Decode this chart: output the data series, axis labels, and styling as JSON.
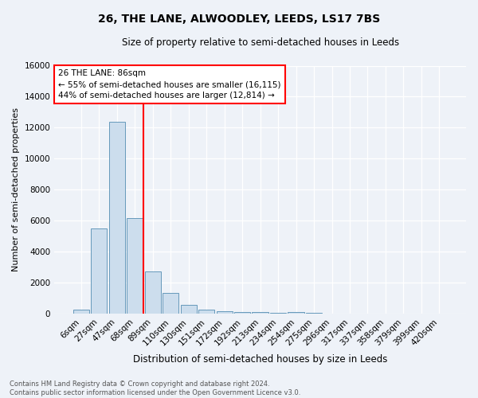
{
  "title": "26, THE LANE, ALWOODLEY, LEEDS, LS17 7BS",
  "subtitle": "Size of property relative to semi-detached houses in Leeds",
  "xlabel": "Distribution of semi-detached houses by size in Leeds",
  "ylabel": "Number of semi-detached properties",
  "bar_labels": [
    "6sqm",
    "27sqm",
    "47sqm",
    "68sqm",
    "89sqm",
    "110sqm",
    "130sqm",
    "151sqm",
    "172sqm",
    "192sqm",
    "213sqm",
    "234sqm",
    "254sqm",
    "275sqm",
    "296sqm",
    "317sqm",
    "337sqm",
    "358sqm",
    "379sqm",
    "399sqm",
    "420sqm"
  ],
  "bar_values": [
    300,
    5500,
    12400,
    6200,
    2750,
    1350,
    600,
    280,
    200,
    130,
    100,
    80,
    100,
    50,
    30,
    20,
    15,
    10,
    8,
    5,
    3
  ],
  "bar_color": "#ccdded",
  "bar_edge_color": "#6699bb",
  "vline_x": 3.5,
  "vline_color": "red",
  "vline_linewidth": 1.5,
  "annotation_title": "26 THE LANE: 86sqm",
  "annotation_line1": "← 55% of semi-detached houses are smaller (16,115)",
  "annotation_line2": "44% of semi-detached houses are larger (12,814) →",
  "annotation_box_color": "red",
  "ylim": [
    0,
    16000
  ],
  "yticks": [
    0,
    2000,
    4000,
    6000,
    8000,
    10000,
    12000,
    14000,
    16000
  ],
  "footer1": "Contains HM Land Registry data © Crown copyright and database right 2024.",
  "footer2": "Contains public sector information licensed under the Open Government Licence v3.0.",
  "bg_color": "#eef2f8",
  "plot_bg_color": "#eef2f8",
  "grid_color": "#ffffff",
  "title_fontsize": 10,
  "subtitle_fontsize": 8.5,
  "ylabel_fontsize": 8,
  "xlabel_fontsize": 8.5,
  "tick_fontsize": 7.5,
  "footer_fontsize": 6,
  "ann_fontsize": 7.5
}
